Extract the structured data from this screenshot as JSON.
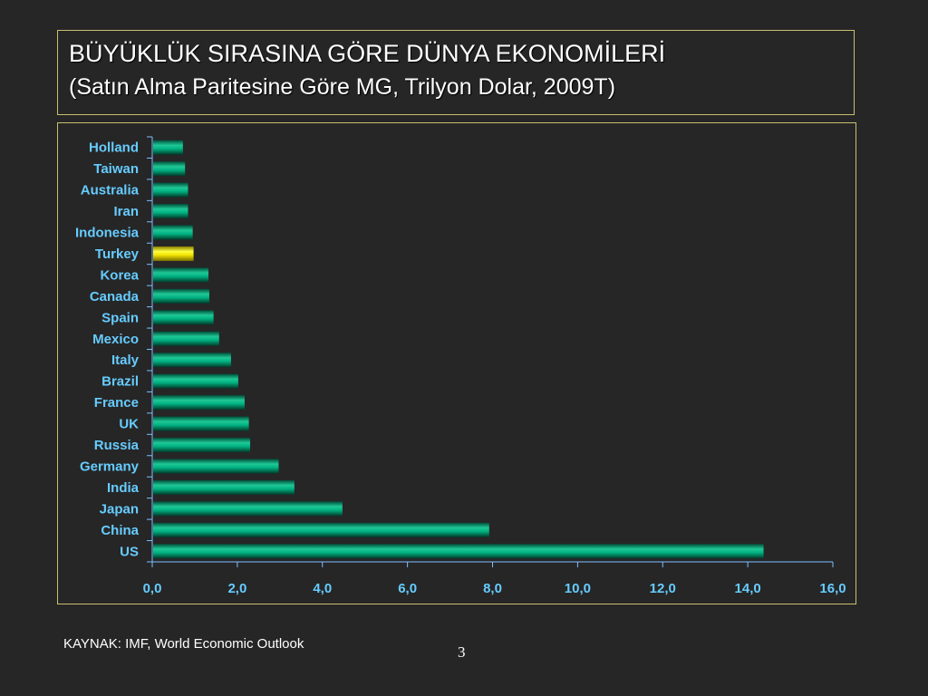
{
  "slide": {
    "title": "BÜYÜKLÜK SIRASINA GÖRE DÜNYA EKONOMİLERİ",
    "subtitle": "(Satın Alma Paritesine Göre MG, Trilyon Dolar, 2009T)",
    "source": "KAYNAK: IMF, World Economic Outlook",
    "page_number": "3"
  },
  "chart_data": {
    "type": "bar",
    "orientation": "horizontal",
    "categories": [
      "Holland",
      "Taiwan",
      "Australia",
      "Iran",
      "Indonesia",
      "Turkey",
      "Korea",
      "Canada",
      "Spain",
      "Mexico",
      "Italy",
      "Brazil",
      "France",
      "UK",
      "Russia",
      "Germany",
      "India",
      "Japan",
      "China",
      "US"
    ],
    "values": [
      0.7,
      0.75,
      0.82,
      0.82,
      0.93,
      0.95,
      1.3,
      1.32,
      1.42,
      1.55,
      1.83,
      2.0,
      2.15,
      2.25,
      2.28,
      2.95,
      3.32,
      4.45,
      7.9,
      14.35
    ],
    "highlight_category": "Turkey",
    "xlim": [
      0,
      16
    ],
    "xticks": [
      "0,0",
      "2,0",
      "4,0",
      "6,0",
      "8,0",
      "10,0",
      "12,0",
      "14,0",
      "16,0"
    ],
    "xlabel": "",
    "ylabel": "",
    "legend": "none",
    "grid": false,
    "colors": {
      "bar": "#00a37a",
      "highlight": "#f0e000",
      "axis": "#7fbfff",
      "label": "#66ccff"
    }
  }
}
